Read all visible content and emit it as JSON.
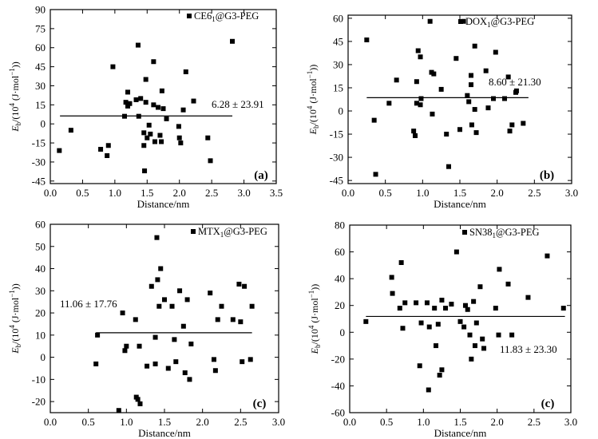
{
  "chart_data": [
    {
      "type": "scatter",
      "panel_label": "(a)",
      "legend": {
        "label": "CE6",
        "subscript": "1",
        "suffix": "@G3-PEG"
      },
      "mean_line_label": "6.28 ± 23.91",
      "mean_value": 6.28,
      "mean_line_x": [
        0.15,
        2.82
      ],
      "xlabel": "Distance/nm",
      "ylabel": "Eb/(10^4 (J·mol^-1))",
      "xlim": [
        0,
        3.5
      ],
      "ylim": [
        -47,
        90
      ],
      "xticks": [
        "0.0",
        "0.5",
        "1.0",
        "1.5",
        "2.0",
        "2.5",
        "3.0",
        "3.5"
      ],
      "yticks": [
        "-45",
        "-30",
        "-15",
        "0",
        "15",
        "30",
        "45",
        "60",
        "75",
        "90"
      ],
      "points": [
        [
          0.14,
          -21
        ],
        [
          0.32,
          -5
        ],
        [
          0.78,
          -20
        ],
        [
          0.88,
          -25
        ],
        [
          0.9,
          -17
        ],
        [
          0.97,
          45
        ],
        [
          1.15,
          6
        ],
        [
          1.17,
          17
        ],
        [
          1.2,
          25
        ],
        [
          1.2,
          14
        ],
        [
          1.23,
          16
        ],
        [
          1.33,
          19
        ],
        [
          1.36,
          62
        ],
        [
          1.37,
          6
        ],
        [
          1.4,
          20
        ],
        [
          1.45,
          -7
        ],
        [
          1.45,
          -17
        ],
        [
          1.46,
          -37
        ],
        [
          1.48,
          17
        ],
        [
          1.48,
          35
        ],
        [
          1.5,
          -11
        ],
        [
          1.53,
          -1
        ],
        [
          1.55,
          -8
        ],
        [
          1.6,
          49
        ],
        [
          1.6,
          15
        ],
        [
          1.62,
          -14
        ],
        [
          1.67,
          13
        ],
        [
          1.7,
          -9
        ],
        [
          1.72,
          -14
        ],
        [
          1.73,
          26
        ],
        [
          1.75,
          12
        ],
        [
          1.8,
          4
        ],
        [
          1.99,
          -2
        ],
        [
          2.0,
          -11
        ],
        [
          2.02,
          -15
        ],
        [
          2.06,
          11
        ],
        [
          2.1,
          41
        ],
        [
          2.22,
          18
        ],
        [
          2.44,
          -11
        ],
        [
          2.48,
          -29
        ],
        [
          2.82,
          65
        ]
      ]
    },
    {
      "type": "scatter",
      "panel_label": "(b)",
      "legend": {
        "label": "DOX",
        "subscript": "1",
        "suffix": "@G3-PEG"
      },
      "mean_line_label": "8.60 ± 21.30",
      "mean_value": 8.6,
      "mean_line_x": [
        0.25,
        2.42
      ],
      "xlabel": "Distance/nm",
      "ylabel": "Eb/(10^4 (J·mol^-1))",
      "xlim": [
        0,
        3
      ],
      "ylim": [
        -47,
        62
      ],
      "xticks": [
        "0.0",
        "0.5",
        "1.0",
        "1.5",
        "2.0",
        "2.5",
        "3.0"
      ],
      "yticks": [
        "-45",
        "-30",
        "-15",
        "0",
        "15",
        "30",
        "45",
        "60"
      ],
      "points": [
        [
          0.25,
          46
        ],
        [
          0.35,
          -6
        ],
        [
          0.37,
          -41
        ],
        [
          0.55,
          5
        ],
        [
          0.65,
          20
        ],
        [
          0.88,
          -13
        ],
        [
          0.9,
          -16
        ],
        [
          0.92,
          5
        ],
        [
          0.92,
          19
        ],
        [
          0.94,
          39
        ],
        [
          0.97,
          4
        ],
        [
          0.97,
          35
        ],
        [
          0.98,
          8
        ],
        [
          1.1,
          58
        ],
        [
          1.12,
          25
        ],
        [
          1.13,
          -2
        ],
        [
          1.15,
          24
        ],
        [
          1.25,
          14
        ],
        [
          1.32,
          -15
        ],
        [
          1.35,
          -36
        ],
        [
          1.45,
          34
        ],
        [
          1.5,
          -12
        ],
        [
          1.55,
          58
        ],
        [
          1.6,
          10
        ],
        [
          1.62,
          6
        ],
        [
          1.65,
          23
        ],
        [
          1.65,
          17
        ],
        [
          1.66,
          -9
        ],
        [
          1.7,
          42
        ],
        [
          1.7,
          1
        ],
        [
          1.72,
          -14
        ],
        [
          1.85,
          26
        ],
        [
          1.88,
          2
        ],
        [
          1.95,
          8
        ],
        [
          1.98,
          38
        ],
        [
          2.1,
          8
        ],
        [
          2.15,
          22
        ],
        [
          2.17,
          -13
        ],
        [
          2.2,
          -9
        ],
        [
          2.25,
          12
        ],
        [
          2.26,
          13
        ],
        [
          2.35,
          -8
        ]
      ]
    },
    {
      "type": "scatter",
      "panel_label": "(c)",
      "legend": {
        "label": "MTX",
        "subscript": "1",
        "suffix": "@G3-PEG"
      },
      "mean_line_label": "11.06 ± 17.76",
      "mean_value": 11.06,
      "mean_line_x": [
        0.6,
        2.65
      ],
      "xlabel": "Distance/nm",
      "ylabel": "Eb/(10^4 (J·mol^-1))",
      "xlim": [
        0,
        3
      ],
      "ylim": [
        -25,
        60
      ],
      "xticks": [
        "0.0",
        "0.5",
        "1.0",
        "1.5",
        "2.0",
        "2.5",
        "3.0"
      ],
      "yticks": [
        "-20",
        "-10",
        "0",
        "10",
        "20",
        "30",
        "40",
        "50",
        "60"
      ],
      "points": [
        [
          0.6,
          -3
        ],
        [
          0.62,
          10
        ],
        [
          0.9,
          -24
        ],
        [
          0.95,
          20
        ],
        [
          0.98,
          3
        ],
        [
          1.0,
          5
        ],
        [
          1.12,
          17
        ],
        [
          1.13,
          -18
        ],
        [
          1.15,
          -19
        ],
        [
          1.17,
          5
        ],
        [
          1.18,
          -21
        ],
        [
          1.27,
          -4
        ],
        [
          1.33,
          32
        ],
        [
          1.38,
          -3
        ],
        [
          1.38,
          9
        ],
        [
          1.4,
          54
        ],
        [
          1.41,
          35
        ],
        [
          1.43,
          23
        ],
        [
          1.45,
          40
        ],
        [
          1.5,
          26
        ],
        [
          1.55,
          -5
        ],
        [
          1.6,
          23
        ],
        [
          1.63,
          8
        ],
        [
          1.65,
          -2
        ],
        [
          1.7,
          30
        ],
        [
          1.75,
          14
        ],
        [
          1.77,
          -7
        ],
        [
          1.8,
          26
        ],
        [
          1.83,
          -10
        ],
        [
          1.85,
          6
        ],
        [
          2.1,
          29
        ],
        [
          2.15,
          -1
        ],
        [
          2.17,
          -6
        ],
        [
          2.2,
          17
        ],
        [
          2.25,
          23
        ],
        [
          2.4,
          17
        ],
        [
          2.48,
          33
        ],
        [
          2.5,
          16
        ],
        [
          2.52,
          -2
        ],
        [
          2.55,
          32
        ],
        [
          2.63,
          -1
        ],
        [
          2.65,
          23
        ]
      ]
    },
    {
      "type": "scatter",
      "panel_label": "(c)",
      "legend": {
        "label": "SN38",
        "subscript": "1",
        "suffix": "@G3-PEG"
      },
      "mean_line_label": "11.83 ± 23.30",
      "mean_value": 11.83,
      "mean_line_x": [
        0.22,
        2.92
      ],
      "xlabel": "Distance/nm",
      "ylabel": "Eb/(10^4 (J·mol^-1))",
      "xlim": [
        0,
        3
      ],
      "ylim": [
        -60,
        80
      ],
      "xticks": [
        "0.0",
        "0.5",
        "1.0",
        "1.5",
        "2.0",
        "2.5",
        "3.0"
      ],
      "yticks": [
        "-60",
        "-40",
        "-20",
        "0",
        "20",
        "40",
        "60",
        "80"
      ],
      "points": [
        [
          0.22,
          8
        ],
        [
          0.57,
          41
        ],
        [
          0.58,
          29
        ],
        [
          0.68,
          18
        ],
        [
          0.7,
          52
        ],
        [
          0.72,
          3
        ],
        [
          0.75,
          22
        ],
        [
          0.9,
          22
        ],
        [
          0.95,
          -25
        ],
        [
          0.97,
          7
        ],
        [
          1.05,
          22
        ],
        [
          1.07,
          -43
        ],
        [
          1.08,
          4
        ],
        [
          1.15,
          18
        ],
        [
          1.17,
          -10
        ],
        [
          1.2,
          6
        ],
        [
          1.22,
          -32
        ],
        [
          1.25,
          -28
        ],
        [
          1.25,
          24
        ],
        [
          1.3,
          18
        ],
        [
          1.38,
          21
        ],
        [
          1.45,
          60
        ],
        [
          1.5,
          8
        ],
        [
          1.55,
          4
        ],
        [
          1.57,
          20
        ],
        [
          1.6,
          17
        ],
        [
          1.63,
          -2
        ],
        [
          1.65,
          -20
        ],
        [
          1.68,
          23
        ],
        [
          1.7,
          -10
        ],
        [
          1.72,
          7
        ],
        [
          1.77,
          34
        ],
        [
          1.8,
          -5
        ],
        [
          1.82,
          -12
        ],
        [
          1.98,
          18
        ],
        [
          2.02,
          -2
        ],
        [
          2.03,
          47
        ],
        [
          2.15,
          36
        ],
        [
          2.2,
          -2
        ],
        [
          2.42,
          26
        ],
        [
          2.68,
          57
        ],
        [
          2.9,
          18
        ]
      ]
    }
  ]
}
